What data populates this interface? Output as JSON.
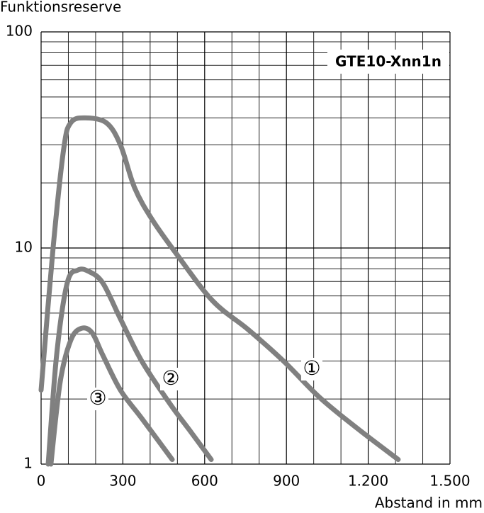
{
  "chart_data": {
    "type": "line",
    "title": "GTE10-Xnn1n",
    "y_label": "Funktionsreserve",
    "x_label": "Abstand in mm",
    "xlim": [
      0,
      1500
    ],
    "xticks": [
      0,
      300,
      600,
      900,
      {
        "value": 1200,
        "label": "1.200"
      },
      {
        "value": 1500,
        "label": "1.500"
      }
    ],
    "ylim": [
      1,
      100
    ],
    "yticks": [
      1,
      10,
      100
    ],
    "log_y": true,
    "grid": true,
    "series": [
      {
        "name": "①",
        "color": "#808080",
        "x": [
          0,
          44,
          83,
          109,
          161,
          239,
          291,
          343,
          408,
          499,
          629,
          759,
          889,
          1019,
          1149,
          1310
        ],
        "values": [
          2.2,
          10,
          28.8,
          38,
          40,
          38,
          30,
          19,
          13.5,
          9.3,
          5.7,
          4.2,
          3.0,
          2.05,
          1.5,
          1.05
        ]
      },
      {
        "name": "②",
        "color": "#808080",
        "x": [
          26,
          57,
          96,
          135,
          174,
          226,
          291,
          369,
          473,
          551,
          624
        ],
        "values": [
          1,
          3.2,
          6.9,
          7.9,
          7.8,
          6.9,
          4.7,
          3.0,
          1.9,
          1.4,
          1.05
        ]
      },
      {
        "name": "③",
        "color": "#808080",
        "x": [
          36,
          70,
          109,
          148,
          187,
          226,
          291,
          369,
          481
        ],
        "values": [
          1,
          2.4,
          3.75,
          4.25,
          4.05,
          3.2,
          2.2,
          1.63,
          1.05
        ]
      }
    ]
  }
}
